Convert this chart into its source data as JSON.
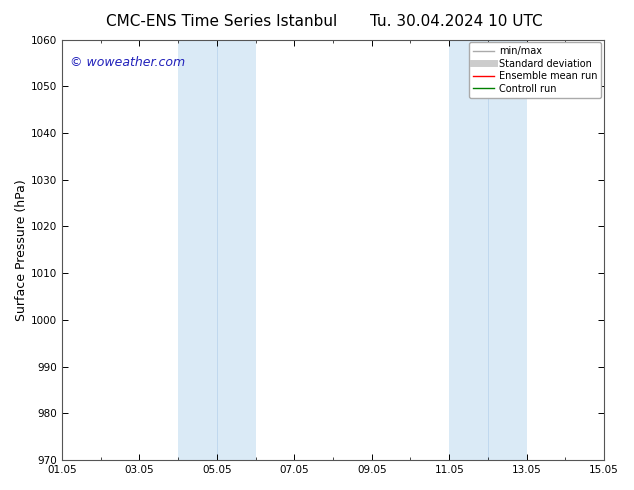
{
  "title_left": "CMC-ENS Time Series Istanbul",
  "title_right": "Tu. 30.04.2024 10 UTC",
  "ylabel": "Surface Pressure (hPa)",
  "ylim": [
    970,
    1060
  ],
  "yticks": [
    970,
    980,
    990,
    1000,
    1010,
    1020,
    1030,
    1040,
    1050,
    1060
  ],
  "xtick_positions": [
    0,
    2,
    4,
    6,
    8,
    10,
    12,
    14
  ],
  "xtick_labels": [
    "01.05",
    "03.05",
    "05.05",
    "07.05",
    "09.05",
    "11.05",
    "13.05",
    "15.05"
  ],
  "xlim": [
    0,
    14
  ],
  "watermark": "© woweather.com",
  "watermark_color": "#2222bb",
  "bg_color": "#ffffff",
  "shaded_bands": [
    {
      "x_start": 3,
      "x_end": 5,
      "color": "#daeaf6",
      "sep": 4
    },
    {
      "x_start": 10,
      "x_end": 12,
      "color": "#daeaf6",
      "sep": 11
    }
  ],
  "legend_entries": [
    {
      "label": "min/max",
      "color": "#aaaaaa",
      "lw": 1.0
    },
    {
      "label": "Standard deviation",
      "color": "#cccccc",
      "lw": 5
    },
    {
      "label": "Ensemble mean run",
      "color": "#ff0000",
      "lw": 1.0
    },
    {
      "label": "Controll run",
      "color": "#008000",
      "lw": 1.0
    }
  ],
  "title_fontsize": 11,
  "tick_fontsize": 7.5,
  "label_fontsize": 9,
  "watermark_fontsize": 9,
  "legend_fontsize": 7
}
